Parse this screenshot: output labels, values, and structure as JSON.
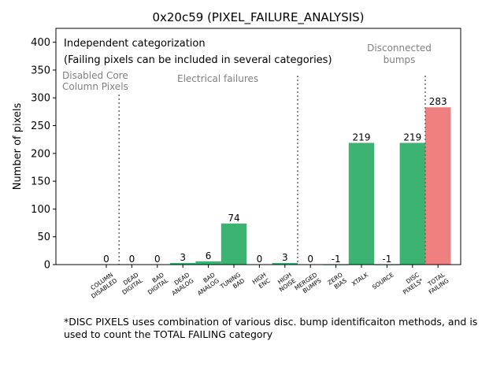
{
  "chart_data": {
    "type": "bar",
    "title": "0x20c59 (PIXEL_FAILURE_ANALYSIS)",
    "ylabel": "Number of pixels",
    "xlabel": "",
    "ylim": [
      0,
      425
    ],
    "yticks": [
      0,
      50,
      100,
      150,
      200,
      250,
      300,
      350,
      400
    ],
    "categories": [
      "COLUMN\nDISABLED",
      "DEAD\nDIGITAL",
      "BAD\nDIGITAL",
      "DEAD\nANALOG",
      "BAD\nANALOG",
      "TUNING\nBAD",
      "HIGH\nENC",
      "HIGH\nNOISE",
      "MERGED\nBUMPS",
      "ZERO\nBIAS",
      "XTALK",
      "SOURCE",
      "DISC\nPIXELS*",
      "TOTAL\nFAILING"
    ],
    "values": [
      0,
      0,
      0,
      3,
      6,
      74,
      0,
      3,
      0,
      -1,
      219,
      -1,
      219,
      283
    ],
    "value_labels": [
      "0",
      "0",
      "0",
      "3",
      "6",
      "74",
      "0",
      "3",
      "0",
      "-1",
      "219",
      "-1",
      "219",
      "283"
    ],
    "bar_colors": [
      "#3cb371",
      "#3cb371",
      "#3cb371",
      "#3cb371",
      "#3cb371",
      "#3cb371",
      "#3cb371",
      "#3cb371",
      "#3cb371",
      "#3cb371",
      "#3cb371",
      "#3cb371",
      "#3cb371",
      "#f08080"
    ],
    "annotations": {
      "independent": "Independent categorization",
      "failing_note": "(Failing pixels can be included in several categories)",
      "disabled_core_line1": "Disabled Core",
      "disabled_core_line2": "Column Pixels",
      "electrical": "Electrical failures",
      "disconnected_line1": "Disconnected",
      "disconnected_line2": "bumps"
    },
    "separators_after_category": [
      0,
      7,
      12
    ]
  },
  "footnote": "*DISC PIXELS uses combination of various disc. bump identificaiton methods, and is used to count the TOTAL FAILING category"
}
